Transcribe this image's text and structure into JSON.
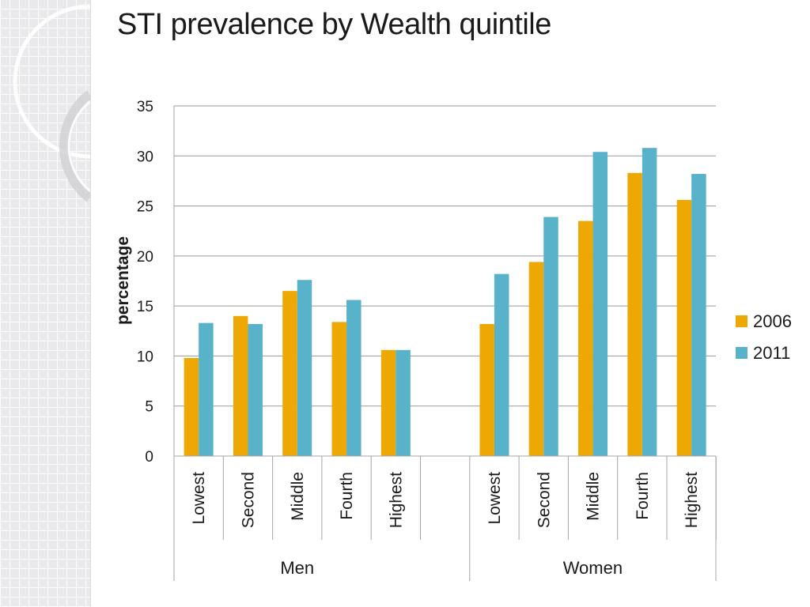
{
  "slide": {
    "title": "STI prevalence by Wealth quintile"
  },
  "colors": {
    "series_2006": "#EDA804",
    "series_2011": "#58B2C9",
    "grid": "#9a9a9a",
    "axis": "#a6a6a6"
  },
  "chart_data": {
    "type": "bar",
    "title": "STI prevalence by Wealth quintile",
    "ylabel": "percentage",
    "xlabel": "",
    "ylim": [
      0,
      35
    ],
    "yticks": [
      0,
      5,
      10,
      15,
      20,
      25,
      30,
      35
    ],
    "grid": true,
    "legend_position": "right",
    "groups": [
      {
        "name": "Men",
        "categories": [
          "Lowest",
          "Second",
          "Middle",
          "Fourth",
          "Highest"
        ],
        "series": [
          {
            "name": "2006",
            "values": [
              9.8,
              14.0,
              16.5,
              13.4,
              10.6
            ]
          },
          {
            "name": "2011",
            "values": [
              13.3,
              13.2,
              17.6,
              15.6,
              10.6
            ]
          }
        ]
      },
      {
        "name": "Women",
        "categories": [
          "Lowest",
          "Second",
          "Middle",
          "Fourth",
          "Highest"
        ],
        "series": [
          {
            "name": "2006",
            "values": [
              13.2,
              19.4,
              23.5,
              28.3,
              25.6
            ]
          },
          {
            "name": "2011",
            "values": [
              18.2,
              23.9,
              30.4,
              30.8,
              28.2
            ]
          }
        ]
      }
    ],
    "legend": [
      "2006",
      "2011"
    ]
  }
}
